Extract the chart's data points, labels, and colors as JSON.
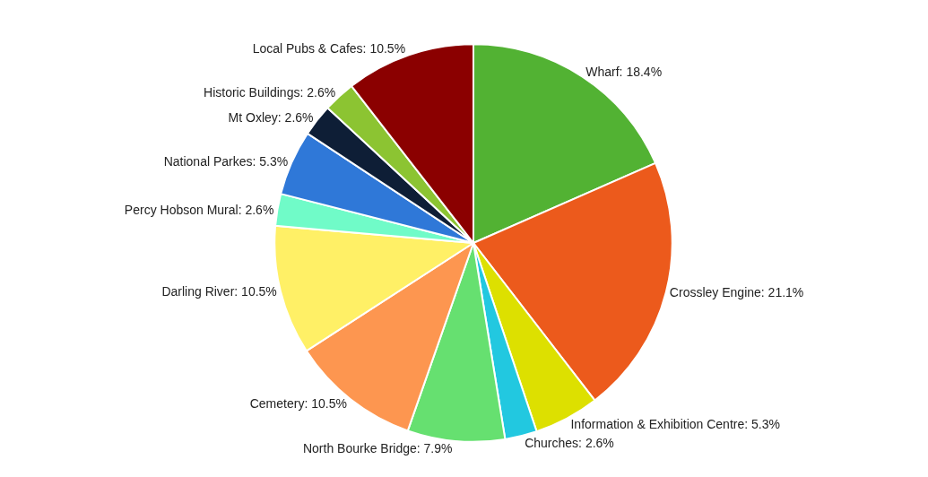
{
  "chart_data": {
    "type": "pie",
    "categories": [
      "Wharf",
      "Crossley Engine",
      "Information & Exhibition Centre",
      "Churches",
      "North Bourke Bridge",
      "Cemetery",
      "Darling River",
      "Percy Hobson Mural",
      "National Parkes",
      "Mt Oxley",
      "Historic Buildings",
      "Local Pubs & Cafes"
    ],
    "values": [
      18.4,
      21.1,
      5.3,
      2.6,
      7.9,
      10.5,
      10.5,
      2.6,
      5.3,
      2.6,
      2.6,
      10.5
    ],
    "value_labels": [
      "18.4%",
      "21.1%",
      "5.3%",
      "2.6%",
      "7.9%",
      "10.5%",
      "10.5%",
      "2.6%",
      "5.3%",
      "2.6%",
      "2.6%",
      "10.5%"
    ],
    "colors": [
      "#52b233",
      "#ec5a1c",
      "#dde000",
      "#22c8e0",
      "#66e070",
      "#fd9650",
      "#fff066",
      "#70fbc8",
      "#2f78d8",
      "#0e1e36",
      "#8cc432",
      "#8b0000"
    ],
    "legend": false
  }
}
